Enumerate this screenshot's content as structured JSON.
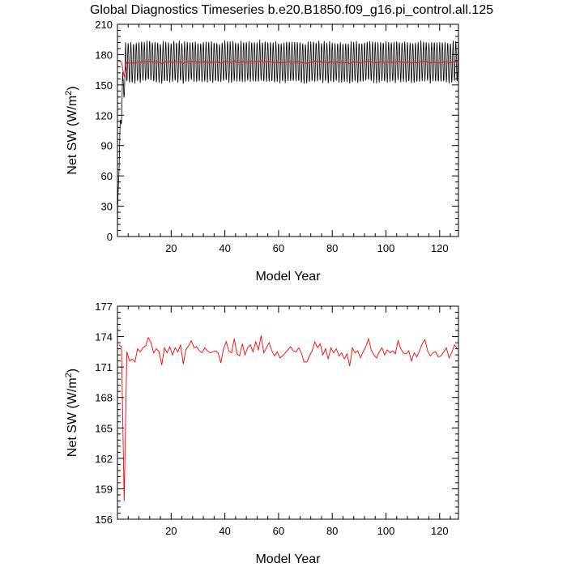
{
  "title": "Global Diagnostics Timeseries b.e20.B1850.f09_g16.pi_control.all.125",
  "chart_data": [
    {
      "type": "line",
      "xlabel": "Model Year",
      "ylabel_main": "Net SW (W/m",
      "ylabel_sup": "2",
      "ylabel_end": ")",
      "xlim": [
        0,
        127
      ],
      "ylim": [
        0,
        210
      ],
      "xticks": [
        20,
        40,
        60,
        80,
        100,
        120
      ],
      "xtick_labels": [
        "20",
        "40",
        "60",
        "80",
        "100",
        "120"
      ],
      "yticks": [
        0,
        30,
        60,
        90,
        120,
        150,
        180,
        210
      ],
      "ytick_labels": [
        "0",
        "30",
        "60",
        "90",
        "120",
        "150",
        "180",
        "210"
      ],
      "grid": false,
      "series": [
        {
          "color": "#000000",
          "description": "monthly values, seasonal cycle between ~150 and ~190",
          "monthly_start": 0,
          "monthly_spinup_end_year": 2.5,
          "cycle_low": 150,
          "cycle_high": 190
        },
        {
          "color": "#ff0000",
          "ref": "annual"
        }
      ]
    },
    {
      "type": "line",
      "xlabel": "Model Year",
      "ylabel_main": "Net SW (W/m",
      "ylabel_sup": "2",
      "ylabel_end": ")",
      "xlim": [
        0,
        127
      ],
      "ylim": [
        156,
        177
      ],
      "xticks": [
        20,
        40,
        60,
        80,
        100,
        120
      ],
      "xtick_labels": [
        "20",
        "40",
        "60",
        "80",
        "100",
        "120"
      ],
      "yticks": [
        156,
        159,
        162,
        165,
        168,
        171,
        174,
        177
      ],
      "ytick_labels": [
        "156",
        "159",
        "162",
        "165",
        "168",
        "171",
        "174",
        "177"
      ],
      "grid": false,
      "series": [
        {
          "color": "#ff0000",
          "ref": "annual"
        }
      ]
    }
  ],
  "annual": {
    "x_start": 0.5,
    "x_step": 1,
    "values": [
      173.2,
      173.0,
      157.8,
      172.5,
      171.6,
      171.8,
      171.5,
      172.8,
      172.5,
      172.9,
      173.1,
      173.9,
      173.4,
      172.4,
      172.8,
      172.5,
      171.2,
      172.9,
      172.4,
      173.0,
      172.2,
      172.9,
      172.5,
      173.2,
      171.3,
      172.7,
      173.1,
      173.6,
      172.9,
      173.0,
      172.6,
      172.4,
      172.9,
      172.6,
      172.4,
      172.5,
      172.6,
      172.4,
      171.4,
      172.8,
      173.5,
      172.6,
      172.4,
      173.8,
      172.3,
      172.1,
      173.3,
      172.2,
      172.9,
      173.2,
      172.5,
      173.5,
      172.7,
      174.1,
      172.4,
      172.9,
      173.4,
      172.6,
      172.1,
      172.5,
      171.9,
      172.1,
      172.4,
      172.7,
      173.0,
      172.6,
      172.5,
      172.9,
      172.4,
      171.5,
      171.5,
      172.1,
      172.6,
      173.5,
      172.9,
      173.3,
      172.2,
      172.8,
      171.8,
      172.9,
      172.4,
      172.8,
      172.1,
      172.4,
      171.8,
      172.3,
      171.1,
      172.9,
      172.4,
      172.6,
      171.9,
      172.5,
      173.0,
      173.8,
      172.7,
      172.2,
      171.9,
      172.5,
      172.9,
      172.2,
      172.7,
      172.4,
      172.6,
      172.3,
      173.6,
      172.8,
      172.4,
      172.3,
      172.6,
      171.6,
      172.4,
      172.0,
      172.6,
      173.3,
      173.7,
      172.6,
      172.1,
      172.4,
      172.5,
      172.0,
      172.1,
      172.5,
      172.9,
      171.9,
      172.4,
      173.2,
      172.8
    ]
  }
}
